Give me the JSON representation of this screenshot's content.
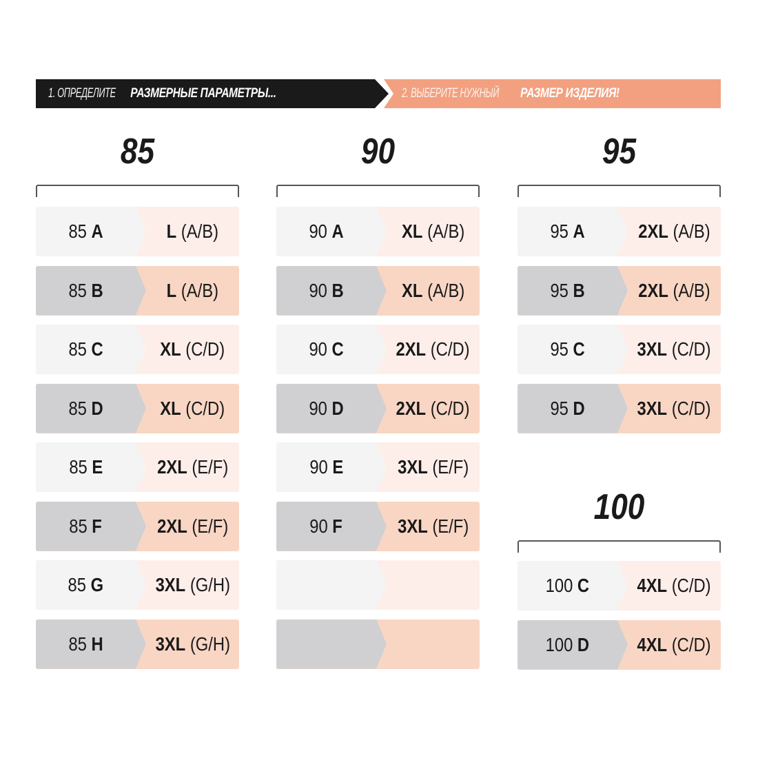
{
  "header": {
    "step1_prefix": "1. ОПРЕДЕЛИТЕ ",
    "step1_bold": "РАЗМЕРНЫЕ ПАРАМЕТРЫ...",
    "step2_prefix": "2. ВЫБЕРИТЕ НУЖНЫЙ ",
    "step2_bold": "РАЗМЕР ИЗДЕЛИЯ!"
  },
  "colors": {
    "header_dark": "#1a1a1a",
    "header_accent": "#f2a07f",
    "light_left": "#f4f4f4",
    "light_right": "#fdeeea",
    "dark_left": "#d0d0d2",
    "dark_right": "#f9d6c4"
  },
  "groups": [
    {
      "title": "85",
      "rows": [
        {
          "band": "85",
          "cup": "A",
          "size": "L",
          "range": "(A/B)"
        },
        {
          "band": "85",
          "cup": "B",
          "size": "L",
          "range": "(A/B)"
        },
        {
          "band": "85",
          "cup": "C",
          "size": "XL",
          "range": "(C/D)"
        },
        {
          "band": "85",
          "cup": "D",
          "size": "XL",
          "range": "(C/D)"
        },
        {
          "band": "85",
          "cup": "E",
          "size": "2XL",
          "range": "(E/F)"
        },
        {
          "band": "85",
          "cup": "F",
          "size": "2XL",
          "range": "(E/F)"
        },
        {
          "band": "85",
          "cup": "G",
          "size": "3XL",
          "range": "(G/H)"
        },
        {
          "band": "85",
          "cup": "H",
          "size": "3XL",
          "range": "(G/H)"
        }
      ]
    },
    {
      "title": "90",
      "rows": [
        {
          "band": "90",
          "cup": "A",
          "size": "XL",
          "range": "(A/B)"
        },
        {
          "band": "90",
          "cup": "B",
          "size": "XL",
          "range": "(A/B)"
        },
        {
          "band": "90",
          "cup": "C",
          "size": "2XL",
          "range": "(C/D)"
        },
        {
          "band": "90",
          "cup": "D",
          "size": "2XL",
          "range": "(C/D)"
        },
        {
          "band": "90",
          "cup": "E",
          "size": "3XL",
          "range": "(E/F)"
        },
        {
          "band": "90",
          "cup": "F",
          "size": "3XL",
          "range": "(E/F)"
        },
        {
          "band": "",
          "cup": "",
          "size": "",
          "range": ""
        },
        {
          "band": "",
          "cup": "",
          "size": "",
          "range": ""
        }
      ]
    },
    {
      "title": "95",
      "rows": [
        {
          "band": "95",
          "cup": "A",
          "size": "2XL",
          "range": "(A/B)"
        },
        {
          "band": "95",
          "cup": "B",
          "size": "2XL",
          "range": "(A/B)"
        },
        {
          "band": "95",
          "cup": "C",
          "size": "3XL",
          "range": "(C/D)"
        },
        {
          "band": "95",
          "cup": "D",
          "size": "3XL",
          "range": "(C/D)"
        }
      ]
    },
    {
      "title": "100",
      "rows": [
        {
          "band": "100",
          "cup": "C",
          "size": "4XL",
          "range": "(C/D)"
        },
        {
          "band": "100",
          "cup": "D",
          "size": "4XL",
          "range": "(C/D)"
        }
      ]
    }
  ]
}
